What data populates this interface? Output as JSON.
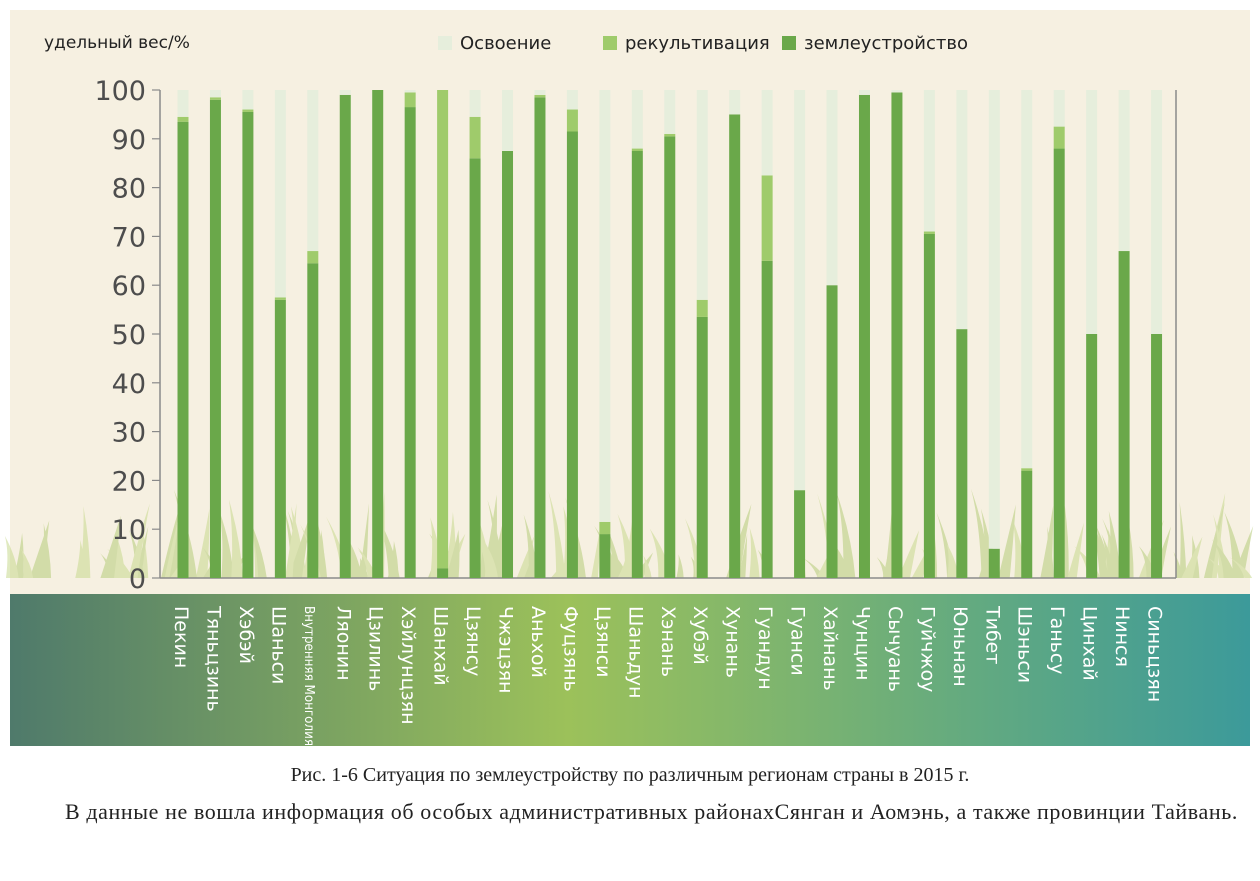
{
  "colors": {
    "plot_bg": "#f6f0e1",
    "zemleustroystvo": "#6aa84a",
    "rekultivatsiya": "#9fcb6b",
    "osvoenie": "#e6eedc",
    "axis": "#8a8a8a",
    "tick_text": "#4d4d4d",
    "band_left": "#4f7a6b",
    "band_mid": "#9cc15a",
    "band_right": "#3c9a9a",
    "label_text": "#ffffff"
  },
  "chart_data": {
    "type": "bar",
    "stacked": true,
    "ylabel": "удельный вес/%",
    "ylim": [
      0,
      100
    ],
    "yticks": [
      0,
      10,
      20,
      30,
      40,
      50,
      60,
      70,
      80,
      90,
      100
    ],
    "legend_position": "top-center",
    "categories": [
      "Пекин",
      "Тяньцзинь",
      "Хэбэй",
      "Шаньси",
      "Внутренняя Монголия",
      "Ляонин",
      "Цзилинь",
      "Хэйлунцзян",
      "Шанхай",
      "Цзянсу",
      "Чжэцзян",
      "Аньхой",
      "Фуцзянь",
      "Цзянси",
      "Шаньдун",
      "Хэнань",
      "Хубэй",
      "Хунань",
      "Гуандун",
      "Гуанси",
      "Хайнань",
      "Чунцин",
      "Сычуань",
      "Гуйчжоу",
      "Юньнан",
      "Тибет",
      "Шэньси",
      "Ганьсу",
      "Цинхай",
      "Нинся",
      "Синьцзян"
    ],
    "series": [
      {
        "name": "землеустройство",
        "color_key": "zemleustroystvo",
        "values": [
          93.5,
          98,
          95.5,
          57,
          64.5,
          99,
          100,
          96.5,
          2,
          86,
          87.5,
          98.5,
          91.5,
          9,
          87.5,
          90.5,
          53.5,
          95,
          65,
          18,
          60,
          99,
          99.5,
          70.5,
          51,
          6,
          22,
          88,
          50,
          67,
          50
        ]
      },
      {
        "name": "рекультивация",
        "color_key": "rekultivatsiya",
        "values": [
          1,
          0.5,
          0.5,
          0.5,
          2.5,
          0,
          0,
          3,
          98,
          8.5,
          0,
          0.5,
          4.5,
          2.5,
          0.5,
          0.5,
          3.5,
          0,
          17.5,
          0,
          0,
          0,
          0,
          0.5,
          0,
          0,
          0.5,
          4.5,
          0,
          0,
          0
        ]
      },
      {
        "name": "Освоение",
        "color_key": "osvoenie",
        "values": [
          5.5,
          1.5,
          4,
          42.5,
          33,
          1,
          0,
          0.5,
          0,
          5.5,
          12.5,
          1,
          4,
          88.5,
          12,
          9,
          43,
          5,
          17.5,
          82,
          40,
          1,
          0.5,
          29,
          49,
          94,
          77.5,
          7.5,
          50,
          33,
          50
        ]
      }
    ],
    "legend_order": [
      "Освоение",
      "рекультивация",
      "землеустройство"
    ]
  },
  "caption": "Рис. 1-6 Ситуация по землеустройству по различным регионам страны в 2015 г.",
  "note": "В данные не вошла информация об особых административных районахСянган и Аомэнь, а также провинции Тайвань."
}
